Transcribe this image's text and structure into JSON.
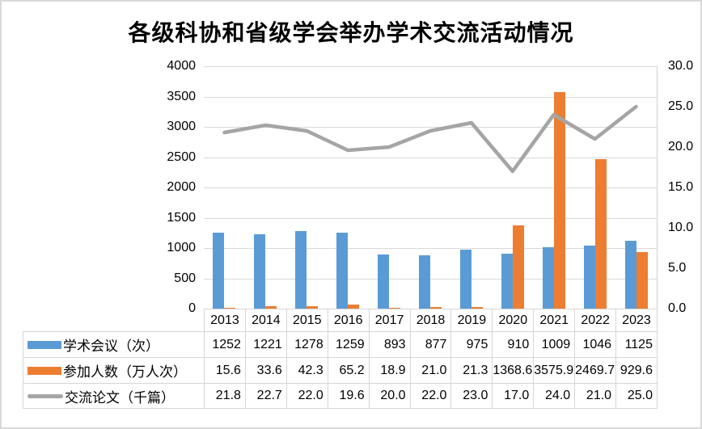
{
  "chart_data": {
    "type": "combo-bar-line",
    "title": "各级科协和省级学会举办学术交流活动情况",
    "categories": [
      "2013",
      "2014",
      "2015",
      "2016",
      "2017",
      "2018",
      "2019",
      "2020",
      "2021",
      "2022",
      "2023"
    ],
    "series": [
      {
        "name": "学术会议（次）",
        "type": "bar",
        "axis": "left",
        "color": "#5B9BD5",
        "values": [
          1252,
          1221,
          1278,
          1259,
          893,
          877,
          975,
          910,
          1009,
          1046,
          1125
        ],
        "display": [
          "1252",
          "1221",
          "1278",
          "1259",
          "893",
          "877",
          "975",
          "910",
          "1009",
          "1046",
          "1125"
        ]
      },
      {
        "name": "参加人数（万人次）",
        "type": "bar",
        "axis": "left",
        "color": "#ED7D31",
        "values": [
          15.6,
          33.6,
          42.3,
          65.2,
          18.9,
          21.0,
          21.3,
          1368.6,
          3575.9,
          2469.7,
          929.6
        ],
        "display": [
          "15.6",
          "33.6",
          "42.3",
          "65.2",
          "18.9",
          "21.0",
          "21.3",
          "1368.6",
          "3575.9",
          "2469.7",
          "929.6"
        ]
      },
      {
        "name": "交流论文（千篇）",
        "type": "line",
        "axis": "right",
        "color": "#A5A5A5",
        "values": [
          21.8,
          22.7,
          22.0,
          19.6,
          20.0,
          22.0,
          23.0,
          17.0,
          24.0,
          21.0,
          25.0
        ],
        "display": [
          "21.8",
          "22.7",
          "22.0",
          "19.6",
          "20.0",
          "22.0",
          "23.0",
          "17.0",
          "24.0",
          "21.0",
          "25.0"
        ]
      }
    ],
    "axes": {
      "left": {
        "min": 0,
        "max": 4000,
        "step": 500,
        "labels": [
          "0",
          "500",
          "1000",
          "1500",
          "2000",
          "2500",
          "3000",
          "3500",
          "4000"
        ]
      },
      "right": {
        "min": 0,
        "max": 30,
        "step": 5,
        "labels": [
          "0.0",
          "5.0",
          "10.0",
          "15.0",
          "20.0",
          "25.0",
          "30.0"
        ]
      }
    },
    "grid": true,
    "legend_position": "data-table-left"
  },
  "colors": {
    "gridline": "#D9D9D9",
    "frame_border": "#D9D9D9",
    "table_border": "#D6D6D6",
    "text": "#000000"
  }
}
